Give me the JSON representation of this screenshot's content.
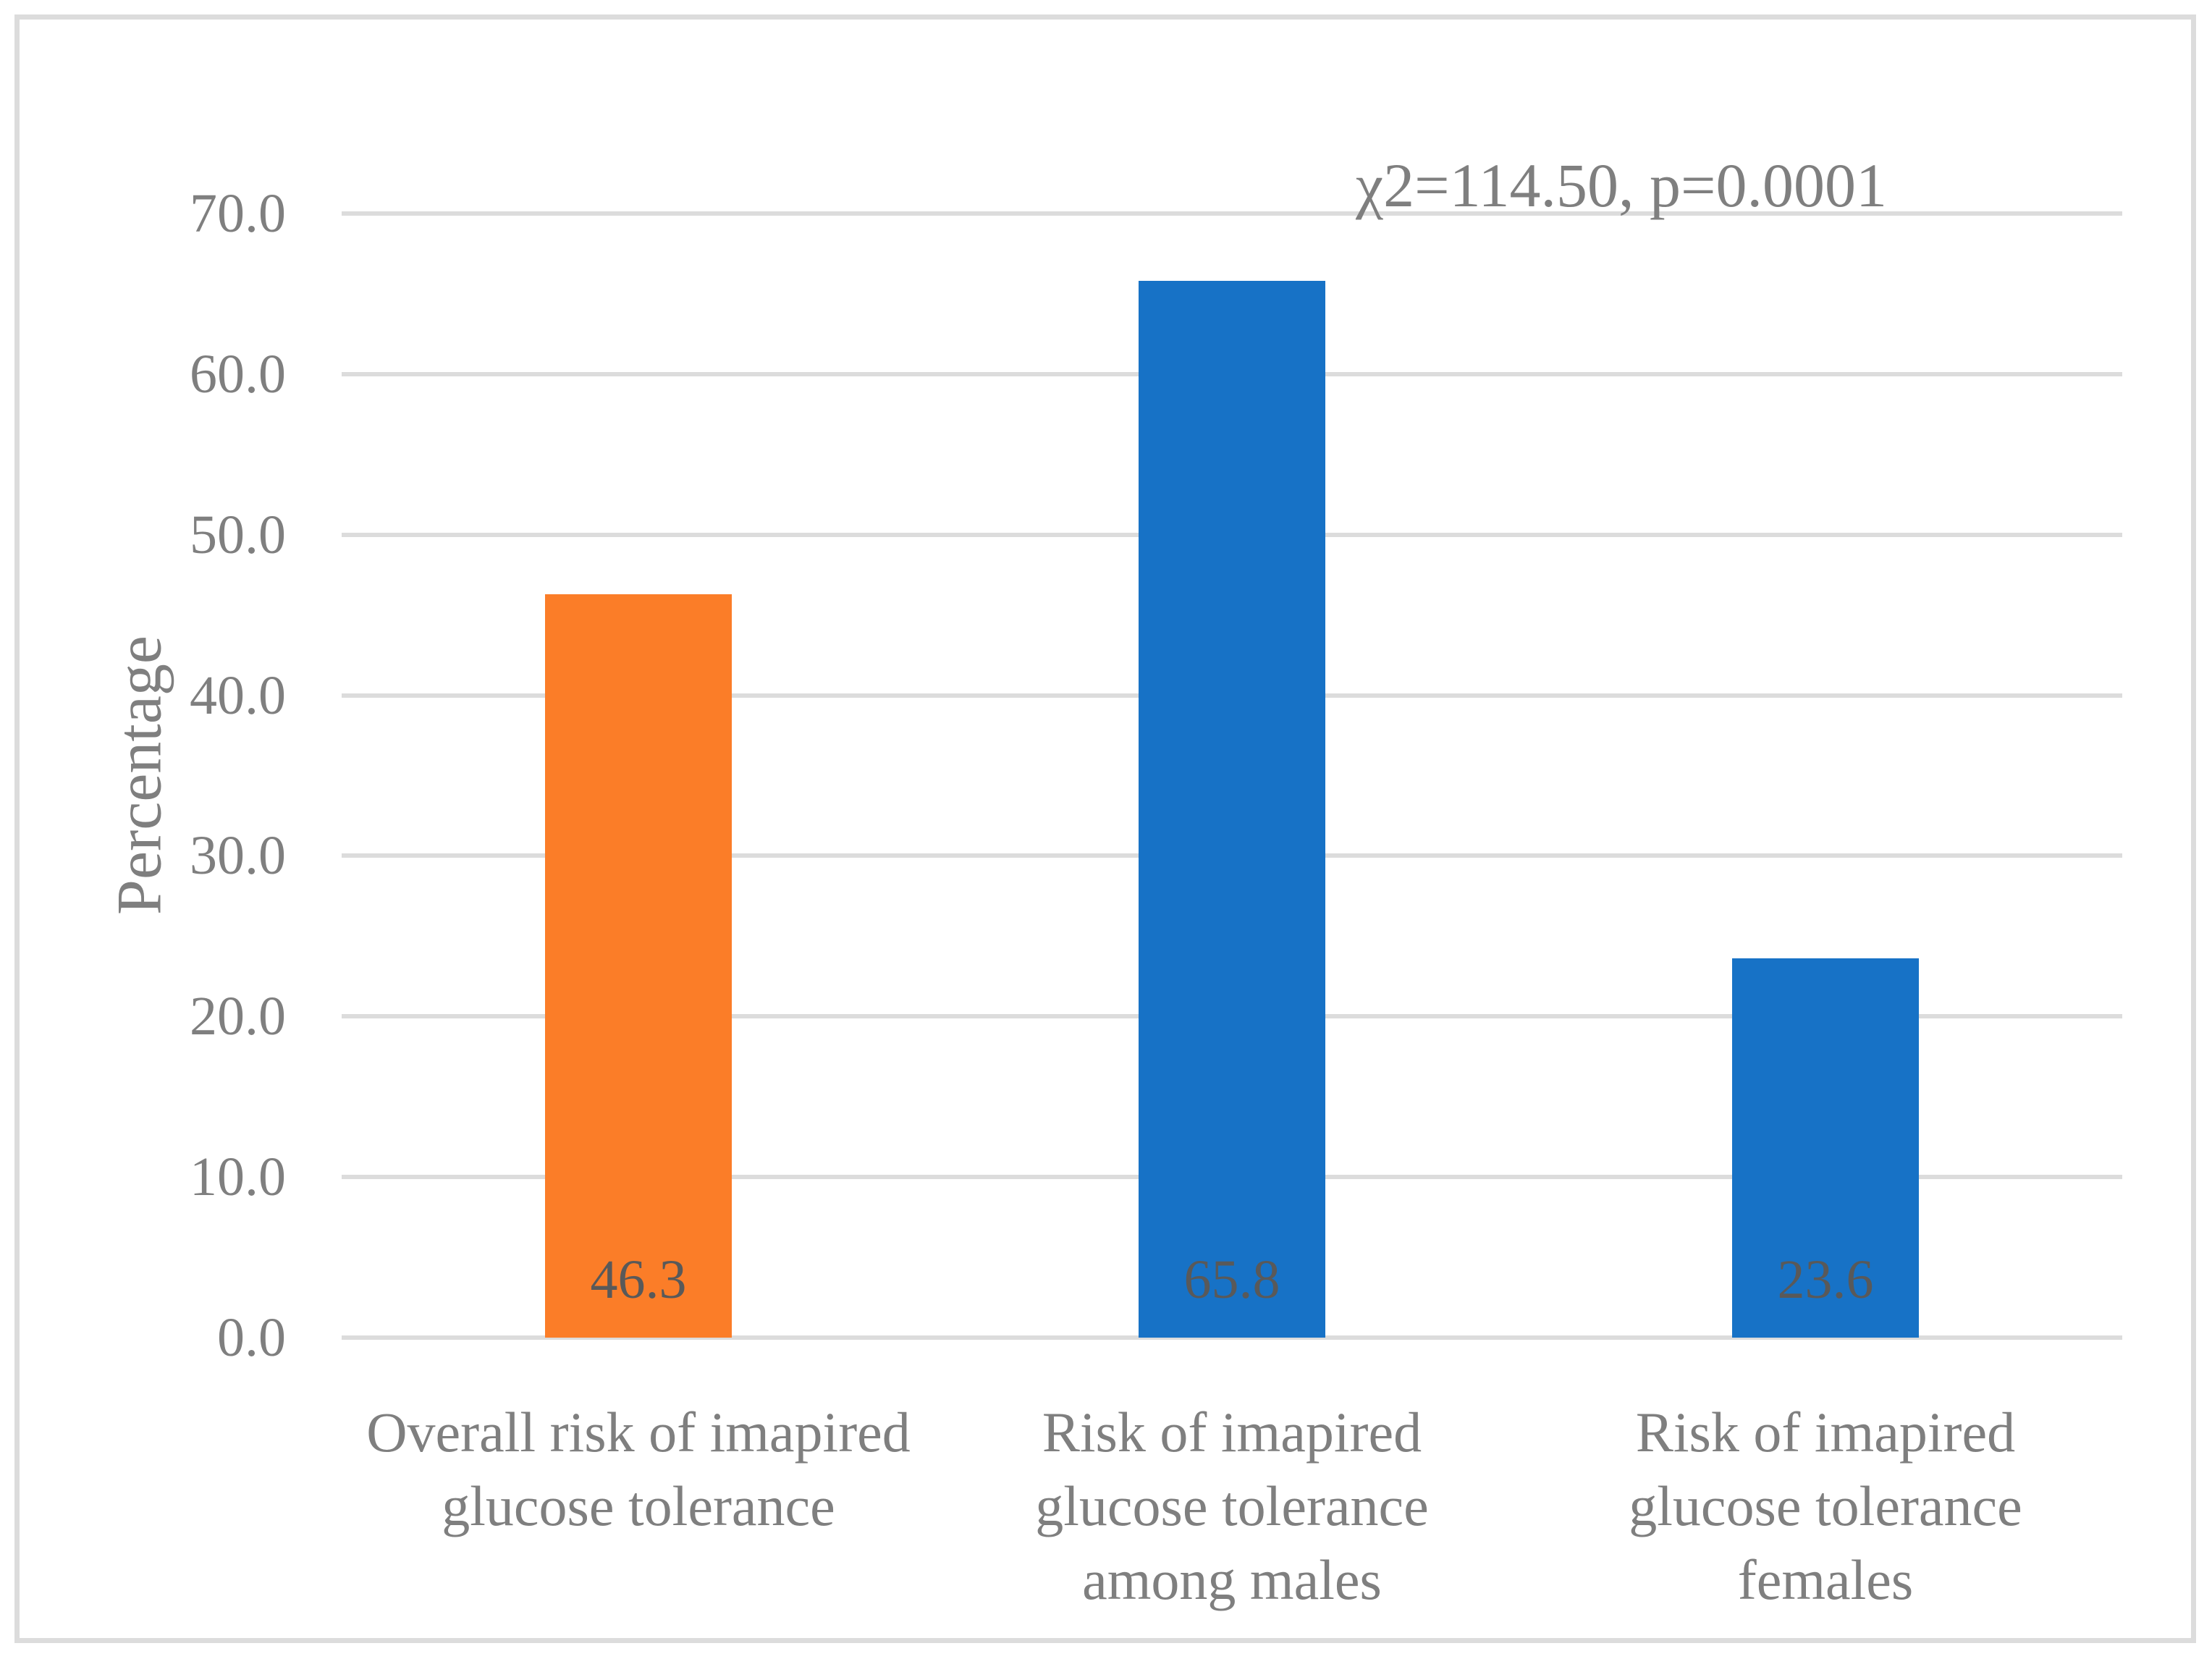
{
  "chart_data": {
    "type": "bar",
    "title": "",
    "ylabel": "Percentage",
    "xlabel": "",
    "categories": [
      "Overall risk of imapired glucose tolerance",
      "Risk of imapired glucose tolerance among males",
      "Risk of imapired glucose tolerance females"
    ],
    "category_lines": [
      [
        "Overall risk of imapired",
        "glucose tolerance"
      ],
      [
        "Risk of imapired",
        "glucose tolerance",
        "among males"
      ],
      [
        "Risk of imapired",
        "glucose tolerance",
        "females"
      ]
    ],
    "values": [
      46.3,
      65.8,
      23.6
    ],
    "data_labels": [
      "46.3",
      "65.8",
      "23.6"
    ],
    "bar_colors": [
      "#FB7D28",
      "#1772C6",
      "#1772C6"
    ],
    "ylim": [
      0,
      70
    ],
    "ytick_step": 10,
    "ytick_labels": [
      "0.0",
      "10.0",
      "20.0",
      "30.0",
      "40.0",
      "50.0",
      "60.0",
      "70.0"
    ],
    "grid": true,
    "legend_position": "none",
    "annotation": "χ2=114.50, p=0.0001"
  },
  "style": {
    "gridline_color": "#DCDCDC",
    "frame_border_color": "#DCDCDC",
    "axis_text_color": "#7F7F7F",
    "data_label_color": "#595959",
    "annotation_color": "#7F7F7F",
    "bar_blue": "#1772C6",
    "bar_orange": "#FB7D28",
    "background_color": "#FFFFFF"
  }
}
